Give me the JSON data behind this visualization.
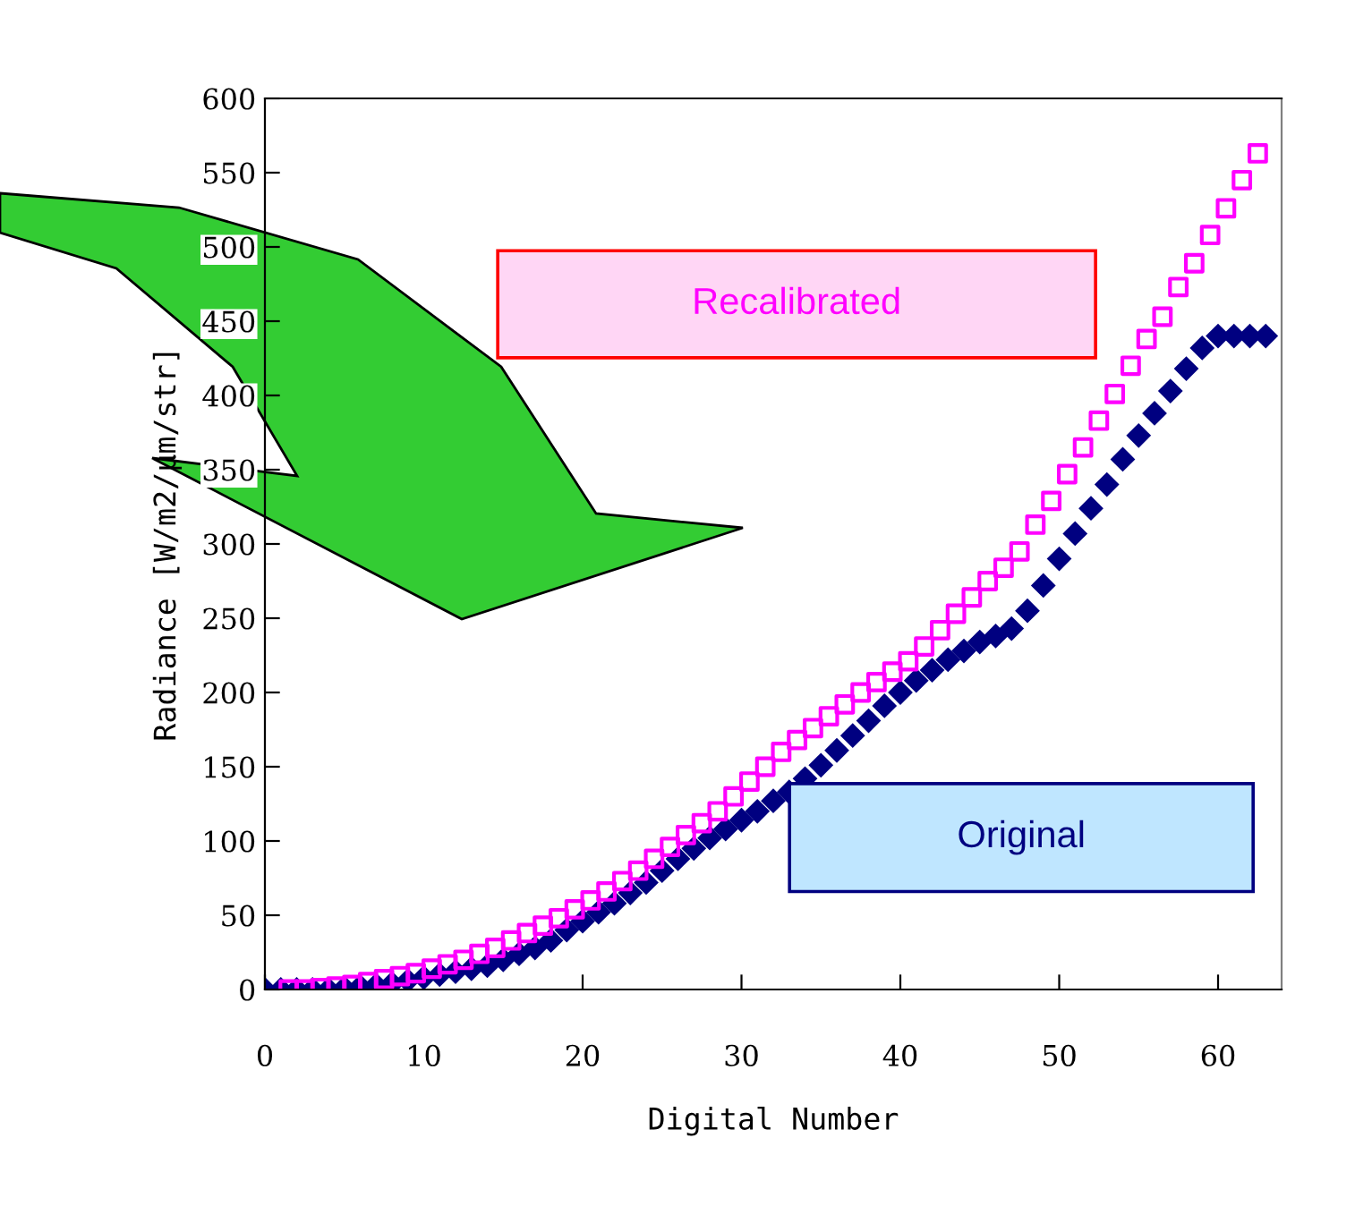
{
  "chart_data": {
    "type": "scatter",
    "xlabel": "Digital Number",
    "ylabel": "Radiance [W/m2/μm/str]",
    "xlim": [
      0,
      64
    ],
    "xticks": [
      0,
      10,
      20,
      30,
      40,
      50,
      60
    ],
    "ylim": [
      0,
      600
    ],
    "yticks": [
      0,
      50,
      100,
      150,
      200,
      250,
      300,
      350,
      400,
      450,
      500,
      550,
      600
    ],
    "grid": false,
    "series": [
      {
        "name": "Recalibrated",
        "color": "#ff00ff",
        "marker": "square",
        "x": [
          1.5,
          2.5,
          3.5,
          4.5,
          5.5,
          6.5,
          7.5,
          8.5,
          9.5,
          10.5,
          11.5,
          12.5,
          13.5,
          14.5,
          15.5,
          16.5,
          17.5,
          18.5,
          19.5,
          20.5,
          21.5,
          22.5,
          23.5,
          24.5,
          25.5,
          26.5,
          27.5,
          28.5,
          29.5,
          30.5,
          31.5,
          32.5,
          33.5,
          34.5,
          35.5,
          36.5,
          37.5,
          38.5,
          39.5,
          40.5,
          41.5,
          42.5,
          43.5,
          44.5,
          45.5,
          46.5,
          47.5,
          48.5,
          49.5,
          50.5,
          51.5,
          52.5,
          53.5,
          54.5,
          55.5,
          56.5,
          57.5,
          58.5,
          59.5,
          60.5,
          61.5,
          62.5
        ],
        "values": [
          0,
          0,
          1,
          2,
          3,
          5,
          7,
          9,
          11,
          14,
          17,
          20,
          24,
          28,
          33,
          38,
          43,
          48,
          54,
          60,
          66,
          73,
          80,
          88,
          96,
          104,
          112,
          120,
          130,
          140,
          150,
          160,
          168,
          176,
          184,
          192,
          200,
          207,
          214,
          221,
          231,
          242,
          253,
          264,
          275,
          284,
          295,
          313,
          329,
          347,
          365,
          383,
          401,
          420,
          438,
          453,
          473,
          489,
          508,
          526,
          545,
          563
        ]
      },
      {
        "name": "Original",
        "color": "#000080",
        "marker": "diamond",
        "x": [
          0,
          1,
          2,
          3,
          4,
          5,
          6,
          7,
          8,
          9,
          10,
          11,
          12,
          13,
          14,
          15,
          16,
          17,
          18,
          19,
          20,
          21,
          22,
          23,
          24,
          25,
          26,
          27,
          28,
          29,
          30,
          31,
          32,
          33,
          34,
          35,
          36,
          37,
          38,
          39,
          40,
          41,
          42,
          43,
          44,
          45,
          46,
          47,
          48,
          49,
          50,
          51,
          52,
          53,
          54,
          55,
          56,
          57,
          58,
          59,
          60,
          61,
          62,
          63
        ],
        "values": [
          0,
          0,
          0,
          0,
          0,
          1,
          2,
          3,
          4,
          6,
          8,
          10,
          12,
          14,
          16,
          20,
          24,
          28,
          33,
          40,
          46,
          52,
          58,
          65,
          72,
          80,
          88,
          95,
          102,
          108,
          114,
          120,
          127,
          133,
          142,
          151,
          161,
          171,
          181,
          191,
          200,
          208,
          215,
          222,
          228,
          234,
          238,
          243,
          255,
          272,
          290,
          307,
          324,
          340,
          357,
          373,
          388,
          403,
          418,
          432,
          440,
          440,
          440,
          440
        ]
      }
    ]
  }
}
